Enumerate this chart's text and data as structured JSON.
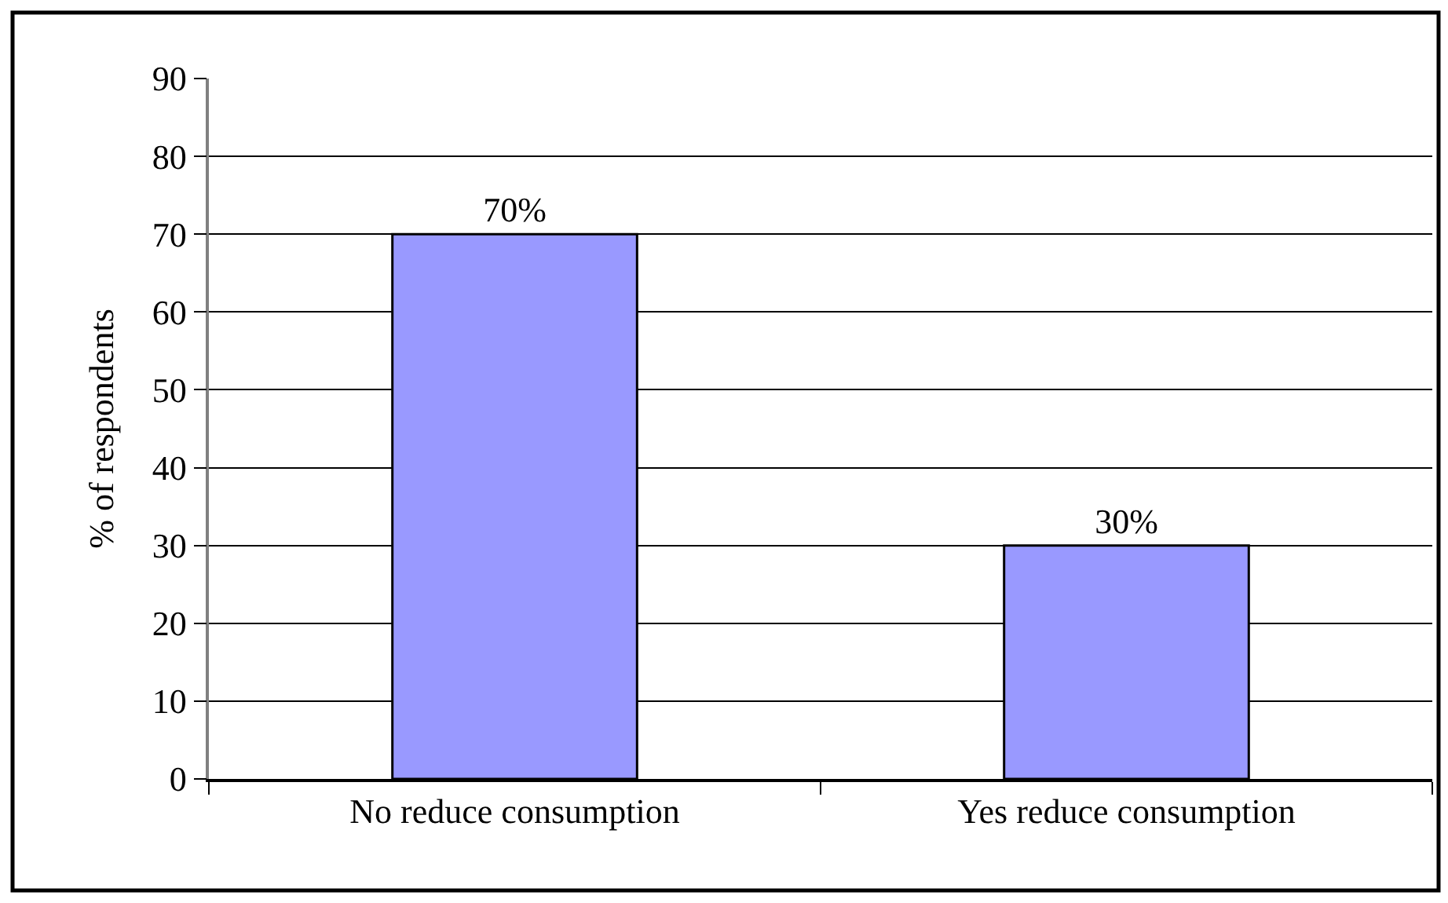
{
  "chart_data": {
    "type": "bar",
    "ylabel": "% of respondents",
    "categories": [
      "No reduce consumption",
      "Yes reduce consumption"
    ],
    "values": [
      70,
      30
    ],
    "value_labels": [
      "70%",
      "30%"
    ],
    "color": "#9999ff",
    "ylim": [
      0,
      90
    ],
    "yticks": [
      0,
      10,
      20,
      30,
      40,
      50,
      60,
      70,
      80,
      90
    ],
    "grid": "y"
  }
}
